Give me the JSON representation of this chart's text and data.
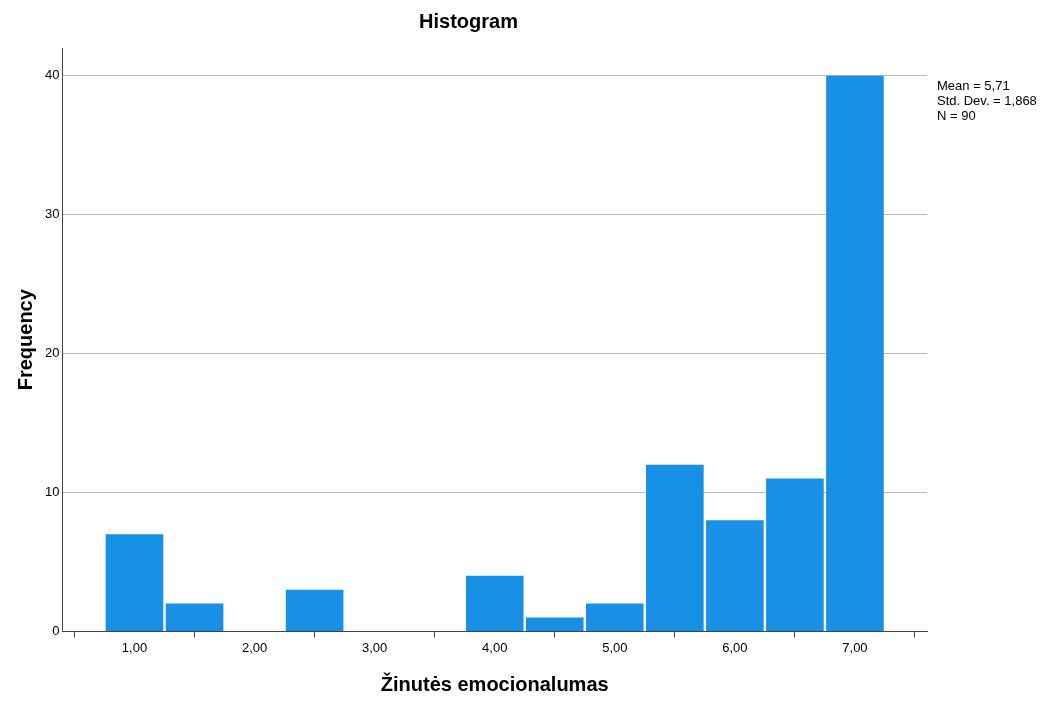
{
  "chart_data": {
    "type": "histogram",
    "title": "Histogram",
    "xlabel": "Žinutės emocionalumas",
    "ylabel": "Frequency",
    "bins": [
      0.75,
      1.25,
      1.75,
      2.25,
      2.75,
      3.25,
      3.75,
      4.25,
      4.75,
      5.25,
      5.75,
      6.25,
      6.75,
      7.25
    ],
    "values": [
      7,
      2,
      0,
      3,
      0,
      0,
      4,
      1,
      2,
      12,
      8,
      11,
      40
    ],
    "color": "#1790e6",
    "xlim": [
      0.4,
      7.6
    ],
    "xticks": [
      {
        "value": 1,
        "label": "1,00"
      },
      {
        "value": 2,
        "label": "2,00"
      },
      {
        "value": 3,
        "label": "3,00"
      },
      {
        "value": 4,
        "label": "4,00"
      },
      {
        "value": 5,
        "label": "5,00"
      },
      {
        "value": 6,
        "label": "6,00"
      },
      {
        "value": 7,
        "label": "7,00"
      }
    ],
    "ylim": [
      0,
      42
    ],
    "yticks": [
      0,
      10,
      20,
      30,
      40
    ],
    "grid": "y",
    "annotations": [
      "Mean = 5,71",
      "Std. Dev. = 1,868",
      "N = 90"
    ]
  }
}
